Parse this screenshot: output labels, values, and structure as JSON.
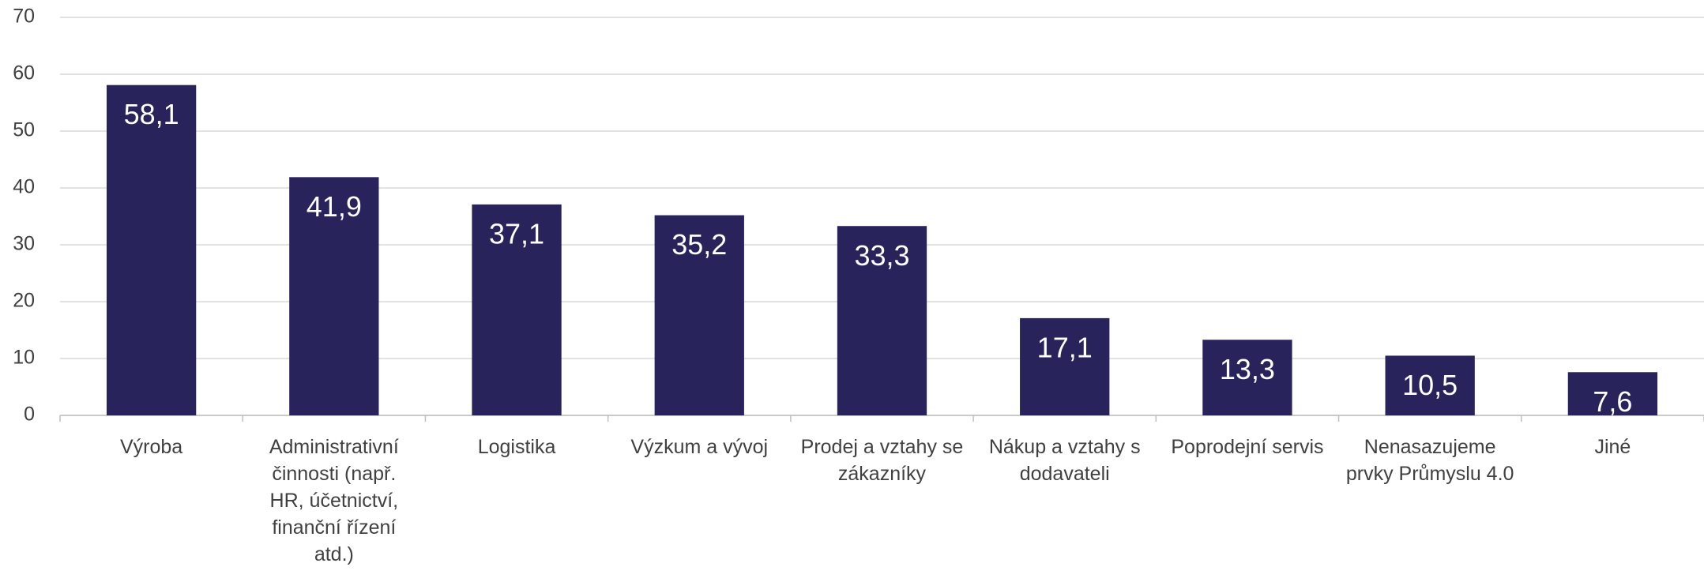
{
  "chart_data": {
    "type": "bar",
    "categories": [
      "Výroba",
      "Administrativní činnosti (např. HR, účetnictví, finanční řízení atd.)",
      "Logistika",
      "Výzkum a vývoj",
      "Prodej a vztahy se zákazníky",
      "Nákup a vztahy s dodavateli",
      "Poprodejní servis",
      "Nenasazujeme prvky Průmyslu 4.0",
      "Jiné"
    ],
    "values": [
      58.1,
      41.9,
      37.1,
      35.2,
      33.3,
      17.1,
      13.3,
      10.5,
      7.6
    ],
    "value_labels": [
      "58,1",
      "41,9",
      "37,1",
      "35,2",
      "33,3",
      "17,1",
      "13,3",
      "10,5",
      "7,6"
    ],
    "color": "#29235c",
    "ylim": [
      0,
      70
    ],
    "yticks": [
      0,
      10,
      20,
      30,
      40,
      50,
      60,
      70
    ],
    "grid": true
  }
}
